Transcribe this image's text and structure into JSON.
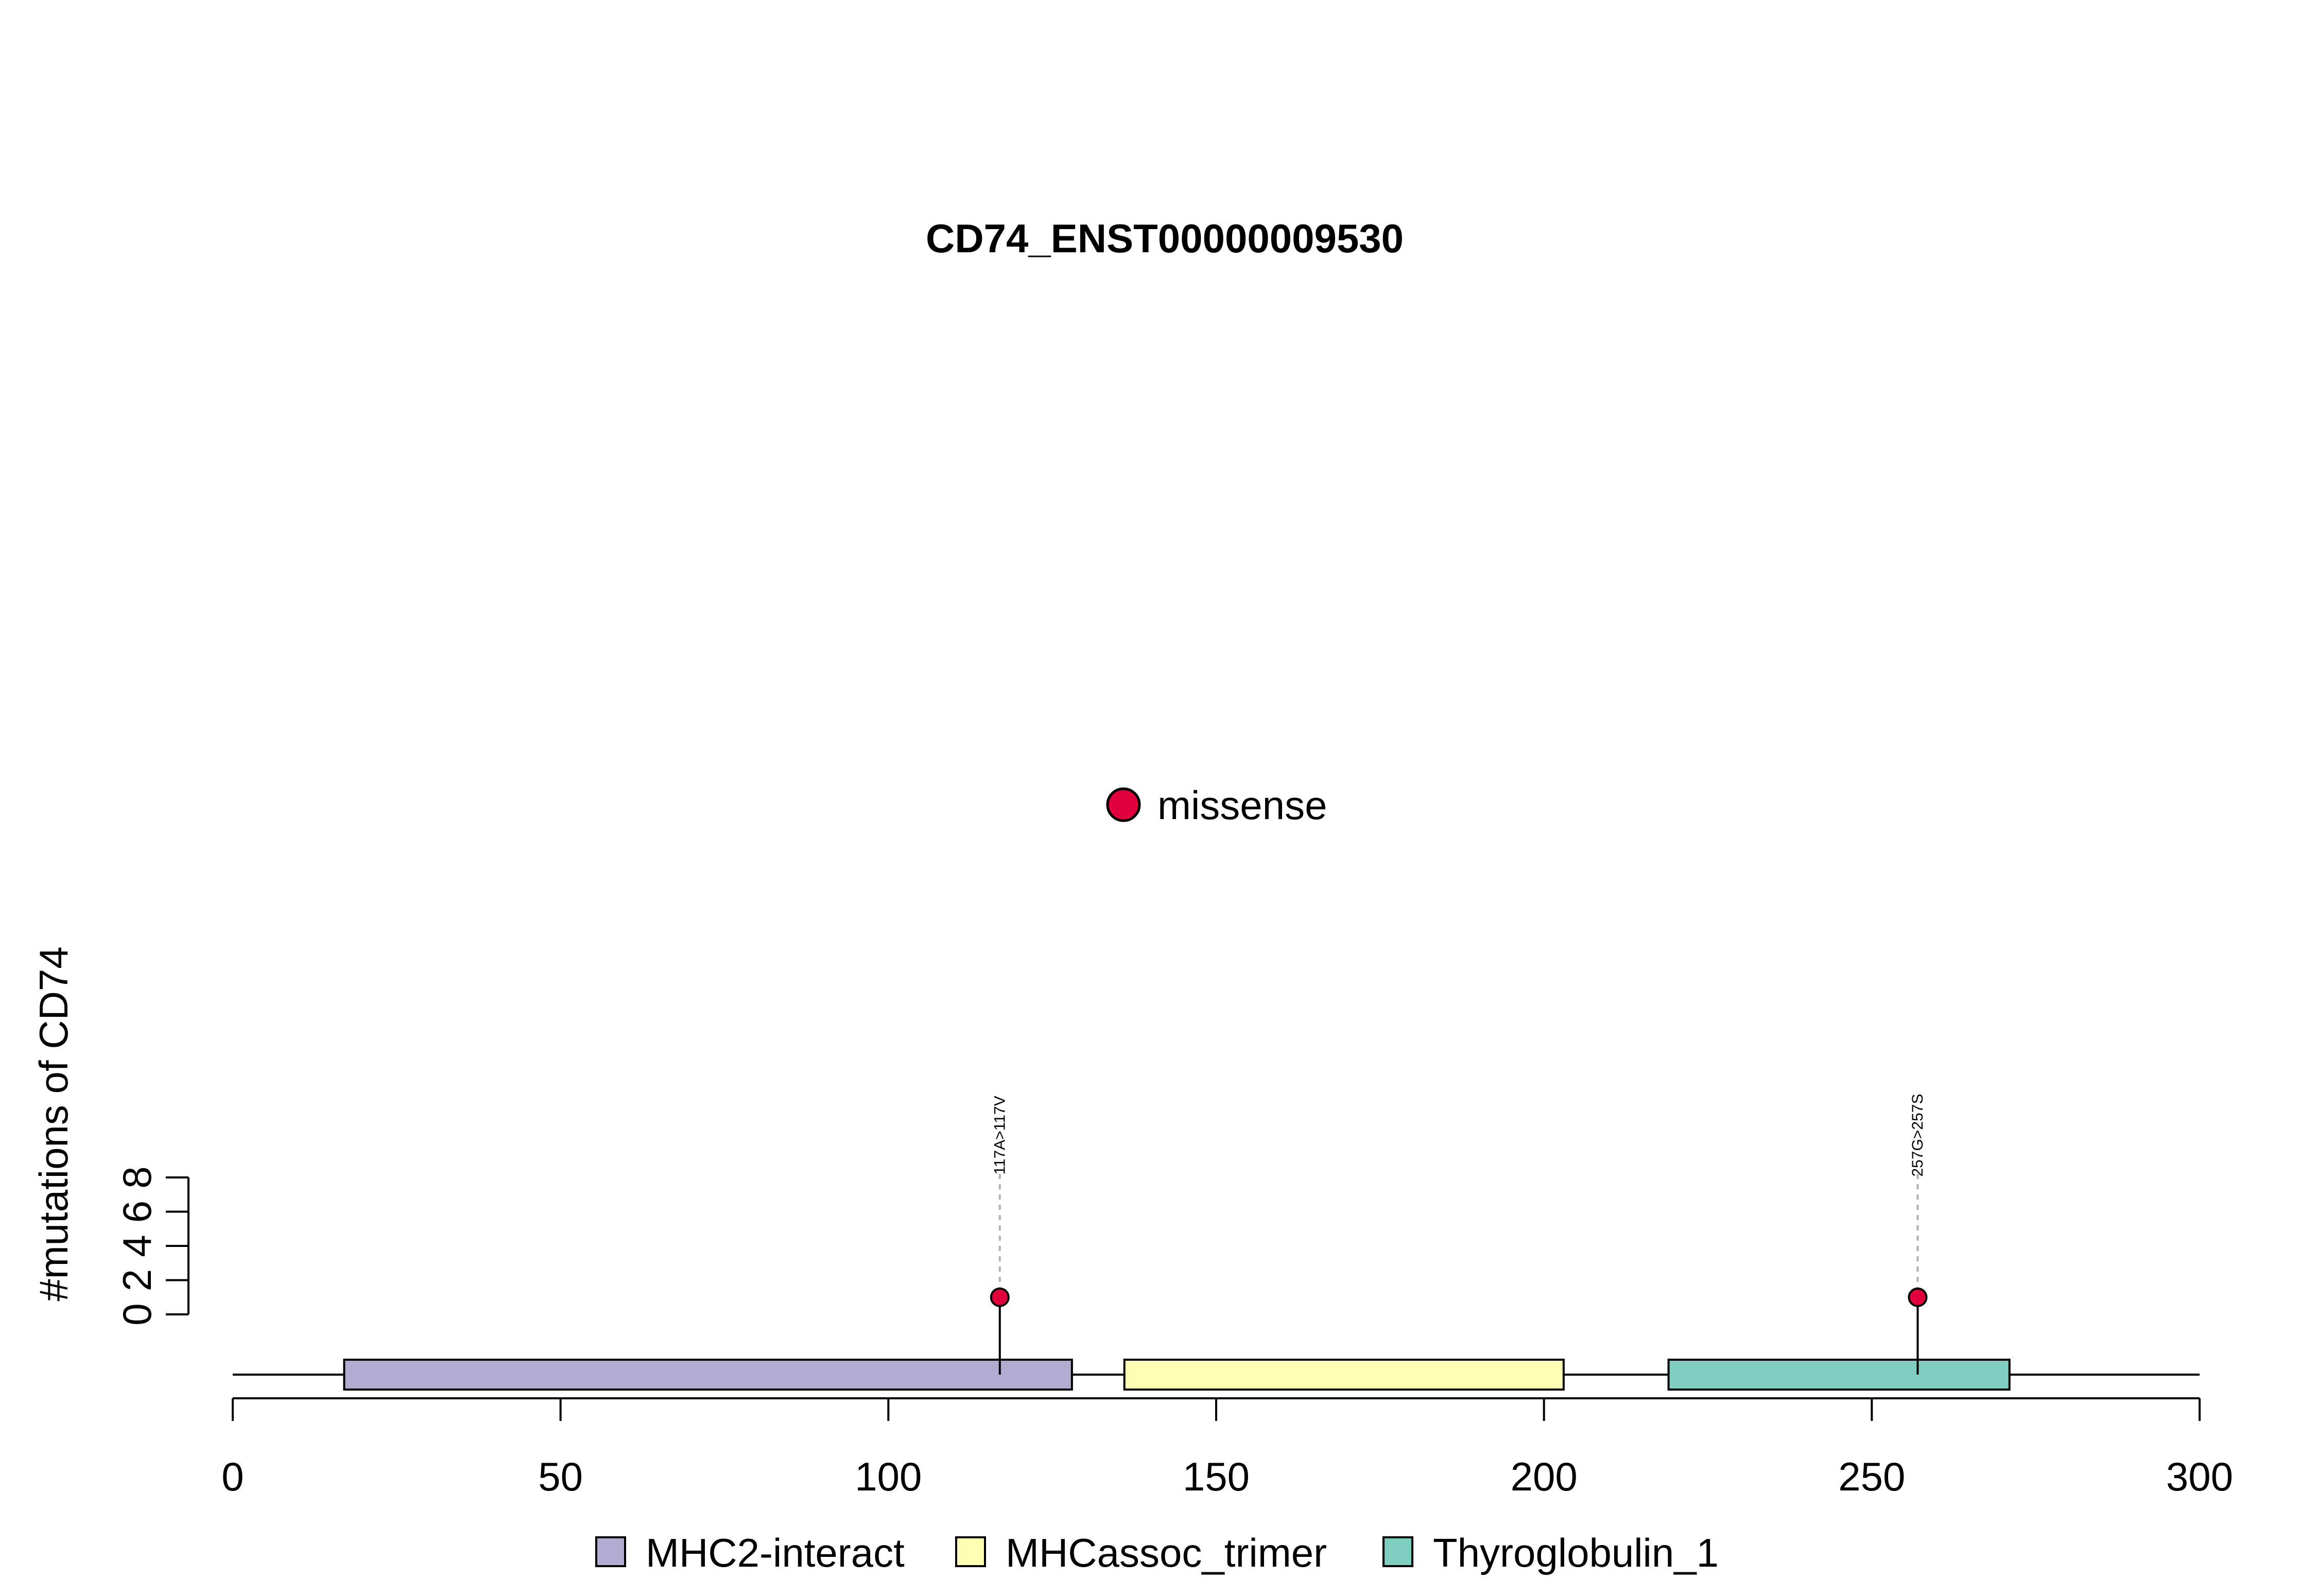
{
  "chart_data": {
    "type": "lollipop",
    "title": "CD74_ENST00000009530",
    "ylabel": "#mutations of CD74",
    "xlim": [
      0,
      300
    ],
    "x_ticks": [
      0,
      50,
      100,
      150,
      200,
      250,
      300
    ],
    "ylim": [
      0,
      8
    ],
    "y_ticks": [
      0,
      2,
      4,
      6,
      8
    ],
    "mutation_legend": [
      {
        "label": "missense",
        "color": "#e0003c"
      }
    ],
    "domains": [
      {
        "name": "MHC2-interact",
        "start": 17,
        "end": 128,
        "color": "#b2abd2"
      },
      {
        "name": "MHCassoc_trimer",
        "start": 136,
        "end": 203,
        "color": "#ffffb3"
      },
      {
        "name": "Thyroglobulin_1",
        "start": 219,
        "end": 271,
        "color": "#80cdc1"
      }
    ],
    "mutations": [
      {
        "position": 117,
        "count": 1,
        "label": "117A>117V",
        "type": "missense"
      },
      {
        "position": 257,
        "count": 1,
        "label": "257G>257S",
        "type": "missense"
      }
    ],
    "grid": false
  }
}
